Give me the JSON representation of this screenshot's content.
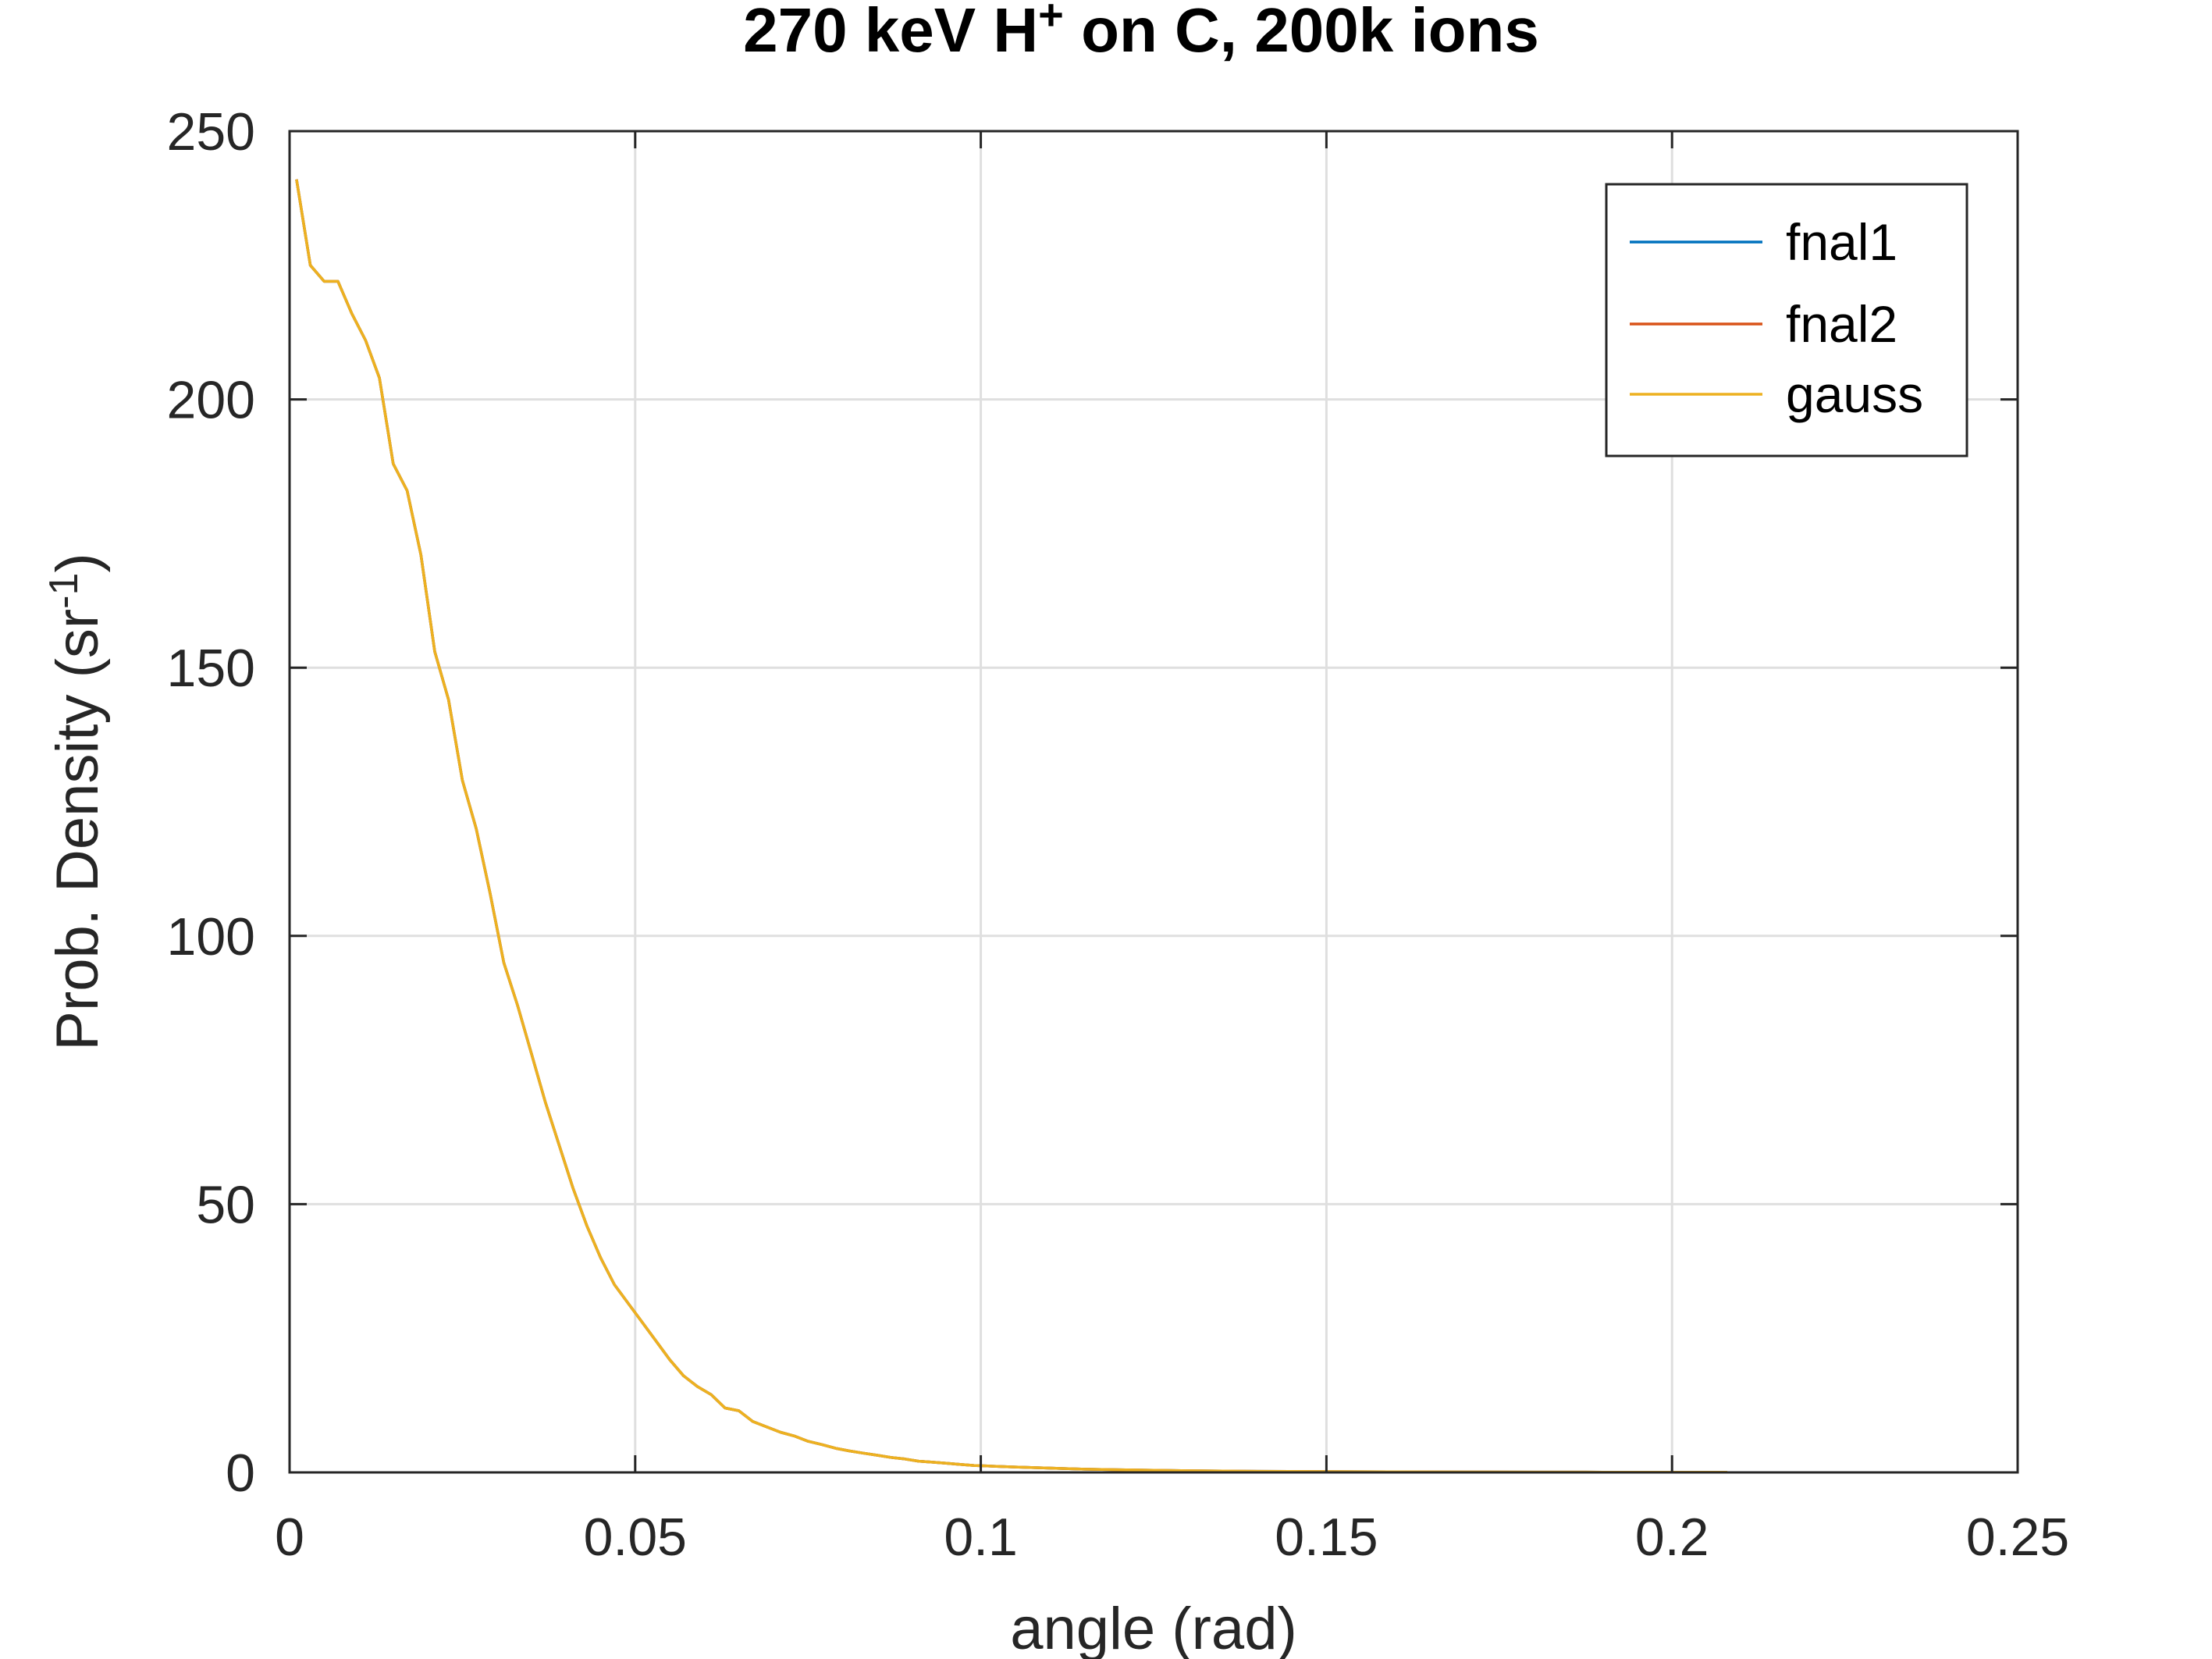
{
  "chart_data": {
    "type": "line",
    "title": "270 keV H",
    "title_sup": "+",
    "title_rest": " on C, 200k ions",
    "xlabel": "angle (rad)",
    "ylabel": "Prob. Density (sr",
    "ylabel_sup": "-1",
    "ylabel_end": ")",
    "xlim": [
      0,
      0.25
    ],
    "ylim": [
      0,
      250
    ],
    "xticks": [
      0,
      0.05,
      0.1,
      0.15,
      0.2,
      0.25
    ],
    "xtick_labels": [
      "0",
      "0.05",
      "0.1",
      "0.15",
      "0.2",
      "0.25"
    ],
    "yticks": [
      0,
      50,
      100,
      150,
      200,
      250
    ],
    "ytick_labels": [
      "0",
      "50",
      "100",
      "150",
      "200",
      "250"
    ],
    "grid": true,
    "legend_position": "top-right",
    "x": [
      0.001,
      0.003,
      0.005,
      0.007,
      0.009,
      0.011,
      0.013,
      0.015,
      0.017,
      0.019,
      0.021,
      0.023,
      0.025,
      0.027,
      0.029,
      0.031,
      0.033,
      0.035,
      0.037,
      0.039,
      0.041,
      0.043,
      0.045,
      0.047,
      0.049,
      0.051,
      0.053,
      0.055,
      0.057,
      0.059,
      0.061,
      0.063,
      0.065,
      0.067,
      0.069,
      0.071,
      0.073,
      0.075,
      0.077,
      0.079,
      0.081,
      0.083,
      0.085,
      0.087,
      0.089,
      0.091,
      0.093,
      0.095,
      0.097,
      0.099,
      0.101,
      0.105,
      0.11,
      0.115,
      0.12,
      0.125,
      0.13,
      0.135,
      0.14,
      0.15,
      0.16,
      0.17,
      0.18,
      0.19,
      0.2,
      0.208
    ],
    "series": [
      {
        "name": "fnal1",
        "color": "#0072bd",
        "values": [
          241,
          225,
          222,
          222,
          216,
          211,
          204,
          188,
          183,
          171,
          153,
          144,
          129,
          120,
          108,
          95,
          87,
          78,
          69,
          61,
          53,
          46,
          40,
          35,
          31.5,
          28,
          24.5,
          21,
          18,
          16,
          14.5,
          12,
          11.5,
          9.5,
          8.5,
          7.5,
          6.8,
          5.8,
          5.2,
          4.5,
          4,
          3.6,
          3.2,
          2.8,
          2.5,
          2.1,
          1.9,
          1.7,
          1.5,
          1.3,
          1.2,
          1.0,
          0.8,
          0.6,
          0.5,
          0.4,
          0.3,
          0.25,
          0.2,
          0.15,
          0.1,
          0.08,
          0.06,
          0.05,
          0.04,
          0.03
        ]
      },
      {
        "name": "fnal2",
        "color": "#d95319",
        "values": [
          241,
          225,
          222,
          222,
          216,
          211,
          204,
          188,
          183,
          171,
          153,
          144,
          129,
          120,
          108,
          95,
          87,
          78,
          69,
          61,
          53,
          46,
          40,
          35,
          31.5,
          28,
          24.5,
          21,
          18,
          16,
          14.5,
          12,
          11.5,
          9.5,
          8.5,
          7.5,
          6.8,
          5.8,
          5.2,
          4.5,
          4,
          3.6,
          3.2,
          2.8,
          2.5,
          2.1,
          1.9,
          1.7,
          1.5,
          1.3,
          1.2,
          1.0,
          0.8,
          0.6,
          0.5,
          0.4,
          0.3,
          0.25,
          0.2,
          0.15,
          0.1,
          0.08,
          0.06,
          0.05,
          0.04,
          0.03
        ]
      },
      {
        "name": "gauss",
        "color": "#edb120",
        "values": [
          241,
          225,
          222,
          222,
          216,
          211,
          204,
          188,
          183,
          171,
          153,
          144,
          129,
          120,
          108,
          95,
          87,
          78,
          69,
          61,
          53,
          46,
          40,
          35,
          31.5,
          28,
          24.5,
          21,
          18,
          16,
          14.5,
          12,
          11.5,
          9.5,
          8.5,
          7.5,
          6.8,
          5.8,
          5.2,
          4.5,
          4,
          3.6,
          3.2,
          2.8,
          2.5,
          2.1,
          1.9,
          1.7,
          1.5,
          1.3,
          1.2,
          1.0,
          0.8,
          0.6,
          0.5,
          0.4,
          0.3,
          0.25,
          0.2,
          0.15,
          0.1,
          0.08,
          0.06,
          0.05,
          0.04,
          0.03
        ]
      }
    ]
  }
}
